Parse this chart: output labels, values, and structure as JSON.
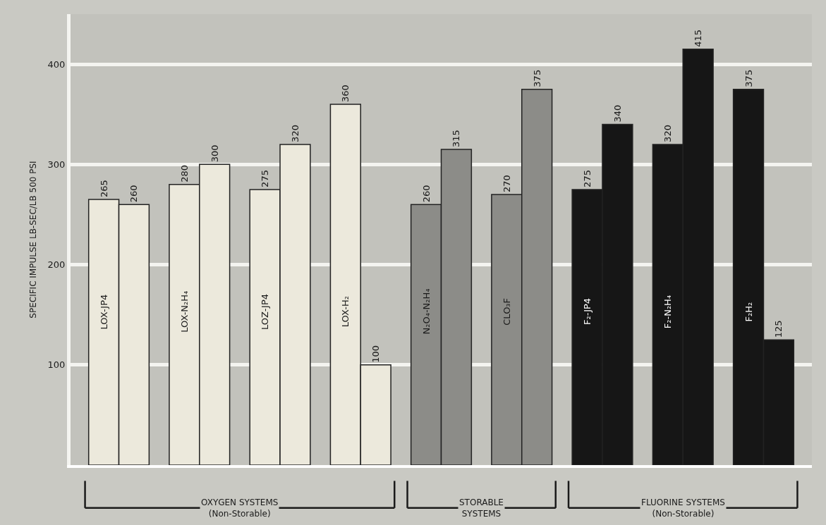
{
  "chart_data": {
    "type": "bar",
    "ylabel": "SPECIFIC IMPULSE LB-SEC/LB 500 PSI",
    "categories": [
      "LOX-JP4",
      "LOX-N₂H₄",
      "LOZ-JP4",
      "LOX-H₂",
      "N₂O₄-N₂H₄",
      "CLO₃F",
      "F₂-JP4",
      "F₂-N₂H₄",
      "F₂H₂"
    ],
    "series": [
      {
        "colors": [
          "#ece9dc",
          "#ece9dc",
          "#ece9dc",
          "#ece9dc",
          "#8c8c88",
          "#8c8c88",
          "#161616",
          "#161616",
          "#161616"
        ],
        "values": [
          265,
          280,
          275,
          360,
          260,
          270,
          275,
          320,
          375
        ]
      },
      {
        "colors": [
          "#ece9dc",
          "#ece9dc",
          "#ece9dc",
          "#ece9dc",
          "#8c8c88",
          "#8c8c88",
          "#161616",
          "#161616",
          "#161616"
        ],
        "values": [
          260,
          300,
          320,
          100,
          315,
          375,
          340,
          415,
          125
        ]
      }
    ],
    "ylim": [
      0,
      450
    ],
    "yticks": [
      100,
      200,
      300,
      400
    ],
    "grid": "y",
    "data_labels": true,
    "tick_labels": "y",
    "annotations": [
      "OXYGEN SYSTEMS\n(Non-Storable)",
      "STORABLE\nSYSTEMS",
      "FLUORINE SYSTEMS\n(Non-Storable)"
    ]
  }
}
